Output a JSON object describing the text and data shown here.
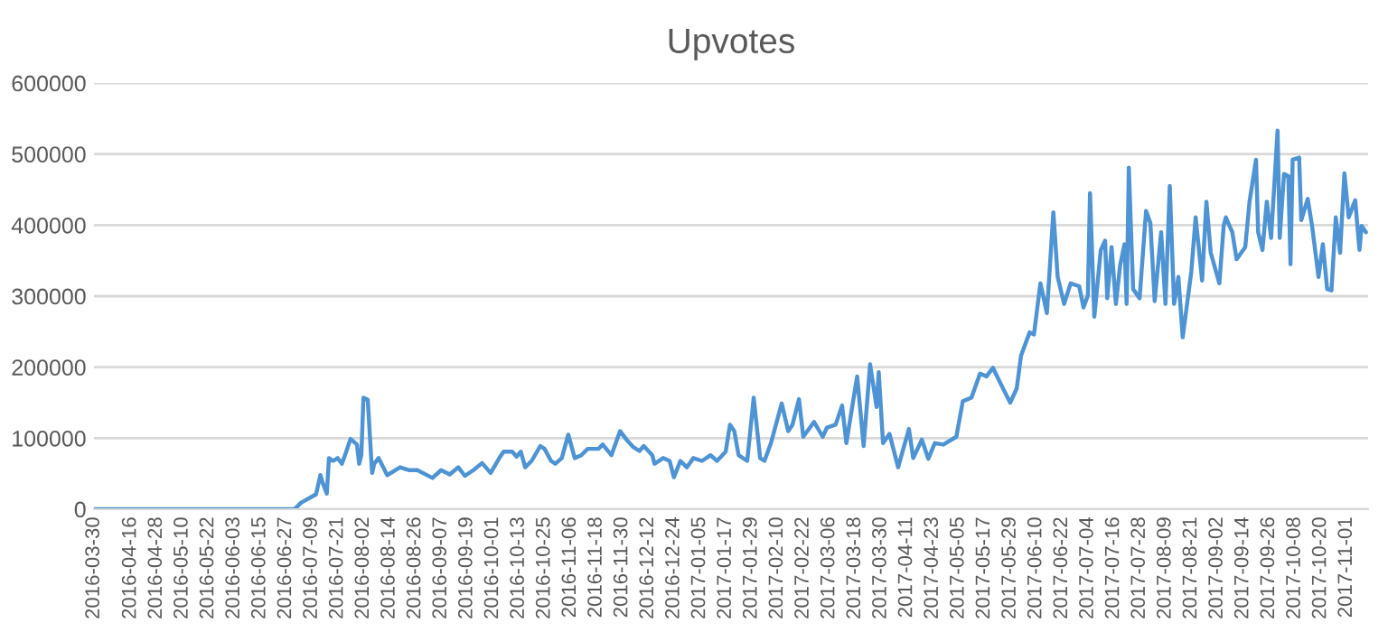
{
  "chart_data": {
    "type": "line",
    "title": "Upvotes",
    "x": [
      "2016-03-30",
      "2016-05-22",
      "2016-07-01",
      "2016-07-04",
      "2016-07-11",
      "2016-07-13",
      "2016-07-14",
      "2016-07-16",
      "2016-07-17",
      "2016-07-19",
      "2016-07-21",
      "2016-07-23",
      "2016-07-25",
      "2016-07-27",
      "2016-07-30",
      "2016-07-31",
      "2016-08-01",
      "2016-08-02",
      "2016-08-04",
      "2016-08-06",
      "2016-08-07",
      "2016-08-09",
      "2016-08-13",
      "2016-08-19",
      "2016-08-23",
      "2016-08-27",
      "2016-09-03",
      "2016-09-07",
      "2016-09-11",
      "2016-09-15",
      "2016-09-18",
      "2016-09-22",
      "2016-09-26",
      "2016-09-30",
      "2016-10-04",
      "2016-10-06",
      "2016-10-10",
      "2016-10-12",
      "2016-10-14",
      "2016-10-16",
      "2016-10-19",
      "2016-10-23",
      "2016-10-25",
      "2016-10-28",
      "2016-10-30",
      "2016-11-02",
      "2016-11-05",
      "2016-11-08",
      "2016-11-11",
      "2016-11-14",
      "2016-11-19",
      "2016-11-21",
      "2016-11-25",
      "2016-11-29",
      "2016-12-02",
      "2016-12-05",
      "2016-12-08",
      "2016-12-10",
      "2016-12-14",
      "2016-12-15",
      "2016-12-19",
      "2016-12-22",
      "2016-12-24",
      "2016-12-27",
      "2016-12-30",
      "2017-01-02",
      "2017-01-06",
      "2017-01-10",
      "2017-01-13",
      "2017-01-17",
      "2017-01-19",
      "2017-01-21",
      "2017-01-23",
      "2017-01-27",
      "2017-01-30",
      "2017-02-02",
      "2017-02-04",
      "2017-02-07",
      "2017-02-12",
      "2017-02-15",
      "2017-02-17",
      "2017-02-20",
      "2017-02-22",
      "2017-02-27",
      "2017-03-03",
      "2017-03-05",
      "2017-03-09",
      "2017-03-12",
      "2017-03-14",
      "2017-03-16",
      "2017-03-19",
      "2017-03-22",
      "2017-03-25",
      "2017-03-28",
      "2017-03-29",
      "2017-03-31",
      "2017-04-03",
      "2017-04-07",
      "2017-04-12",
      "2017-04-14",
      "2017-04-18",
      "2017-04-21",
      "2017-04-24",
      "2017-04-28",
      "2017-05-04",
      "2017-05-07",
      "2017-05-11",
      "2017-05-15",
      "2017-05-18",
      "2017-05-21",
      "2017-05-25",
      "2017-05-29",
      "2017-06-01",
      "2017-06-03",
      "2017-06-07",
      "2017-06-09",
      "2017-06-12",
      "2017-06-15",
      "2017-06-18",
      "2017-06-20",
      "2017-06-23",
      "2017-06-26",
      "2017-06-30",
      "2017-07-02",
      "2017-07-04",
      "2017-07-05",
      "2017-07-07",
      "2017-07-10",
      "2017-07-12",
      "2017-07-13",
      "2017-07-15",
      "2017-07-17",
      "2017-07-19",
      "2017-07-21",
      "2017-07-22",
      "2017-07-23",
      "2017-07-25",
      "2017-07-28",
      "2017-07-31",
      "2017-08-02",
      "2017-08-04",
      "2017-08-07",
      "2017-08-09",
      "2017-08-11",
      "2017-08-13",
      "2017-08-15",
      "2017-08-17",
      "2017-08-21",
      "2017-08-23",
      "2017-08-26",
      "2017-08-28",
      "2017-08-30",
      "2017-09-03",
      "2017-09-05",
      "2017-09-06",
      "2017-09-09",
      "2017-09-11",
      "2017-09-15",
      "2017-09-17",
      "2017-09-20",
      "2017-09-21",
      "2017-09-23",
      "2017-09-25",
      "2017-09-27",
      "2017-09-30",
      "2017-10-01",
      "2017-10-03",
      "2017-10-05",
      "2017-10-06",
      "2017-10-07",
      "2017-10-10",
      "2017-10-11",
      "2017-10-14",
      "2017-10-16",
      "2017-10-19",
      "2017-10-21",
      "2017-10-23",
      "2017-10-25",
      "2017-10-27",
      "2017-10-29",
      "2017-10-31",
      "2017-11-02",
      "2017-11-05",
      "2017-11-07",
      "2017-11-08",
      "2017-11-10"
    ],
    "series": [
      {
        "color": "#4e93d3",
        "values": [
          0,
          0,
          0,
          9000,
          21000,
          48000,
          38000,
          22000,
          72000,
          68000,
          72000,
          64000,
          81000,
          99000,
          91000,
          64000,
          76000,
          157000,
          154000,
          51000,
          64000,
          72000,
          48000,
          59000,
          55000,
          55000,
          44000,
          55000,
          49000,
          59000,
          47000,
          55000,
          65000,
          51000,
          72000,
          81000,
          81000,
          74000,
          81000,
          59000,
          68000,
          89000,
          85000,
          68000,
          64000,
          72000,
          105000,
          72000,
          76000,
          85000,
          85000,
          91000,
          76000,
          110000,
          98000,
          88000,
          82000,
          89000,
          76000,
          64000,
          72000,
          68000,
          45000,
          68000,
          59000,
          72000,
          68000,
          76000,
          68000,
          81000,
          119000,
          110000,
          76000,
          68000,
          157000,
          72000,
          68000,
          93000,
          149000,
          110000,
          119000,
          155000,
          102000,
          123000,
          102000,
          115000,
          119000,
          146000,
          93000,
          131000,
          187000,
          89000,
          204000,
          144000,
          193000,
          93000,
          106000,
          59000,
          113000,
          72000,
          98000,
          71000,
          93000,
          91000,
          102000,
          152000,
          157000,
          191000,
          187000,
          199000,
          174000,
          150000,
          170000,
          216000,
          249000,
          246000,
          318000,
          276000,
          418000,
          327000,
          289000,
          318000,
          314000,
          284000,
          301000,
          445000,
          271000,
          365000,
          378000,
          297000,
          369000,
          289000,
          344000,
          373000,
          289000,
          481000,
          310000,
          297000,
          420000,
          403000,
          293000,
          390000,
          289000,
          455000,
          289000,
          327000,
          242000,
          335000,
          411000,
          322000,
          433000,
          361000,
          318000,
          399000,
          411000,
          390000,
          352000,
          369000,
          433000,
          492000,
          390000,
          365000,
          433000,
          382000,
          533000,
          382000,
          472000,
          469000,
          345000,
          492000,
          495000,
          407000,
          437000,
          399000,
          327000,
          373000,
          310000,
          308000,
          411000,
          361000,
          473000,
          411000,
          435000,
          365000,
          399000,
          390000
        ]
      }
    ],
    "xlim": [
      "2016-03-30",
      "2017-11-11"
    ],
    "xticks": [
      "2016-03-30",
      "2016-04-16",
      "2016-04-28",
      "2016-05-10",
      "2016-05-22",
      "2016-06-03",
      "2016-06-15",
      "2016-06-27",
      "2016-07-09",
      "2016-07-21",
      "2016-08-02",
      "2016-08-14",
      "2016-08-26",
      "2016-09-07",
      "2016-09-19",
      "2016-10-01",
      "2016-10-13",
      "2016-10-25",
      "2016-11-06",
      "2016-11-18",
      "2016-11-30",
      "2016-12-12",
      "2016-12-24",
      "2017-01-05",
      "2017-01-17",
      "2017-01-29",
      "2017-02-10",
      "2017-02-22",
      "2017-03-06",
      "2017-03-18",
      "2017-03-30",
      "2017-04-11",
      "2017-04-23",
      "2017-05-05",
      "2017-05-17",
      "2017-05-29",
      "2017-06-10",
      "2017-06-22",
      "2017-07-04",
      "2017-07-16",
      "2017-07-28",
      "2017-08-09",
      "2017-08-21",
      "2017-09-02",
      "2017-09-14",
      "2017-09-26",
      "2017-10-08",
      "2017-10-20",
      "2017-11-01"
    ],
    "ylim": [
      0,
      600000
    ],
    "yticks": [
      0,
      100000,
      200000,
      300000,
      400000,
      500000,
      600000
    ],
    "grid": "y",
    "marker": "none",
    "line_style": "solid"
  }
}
